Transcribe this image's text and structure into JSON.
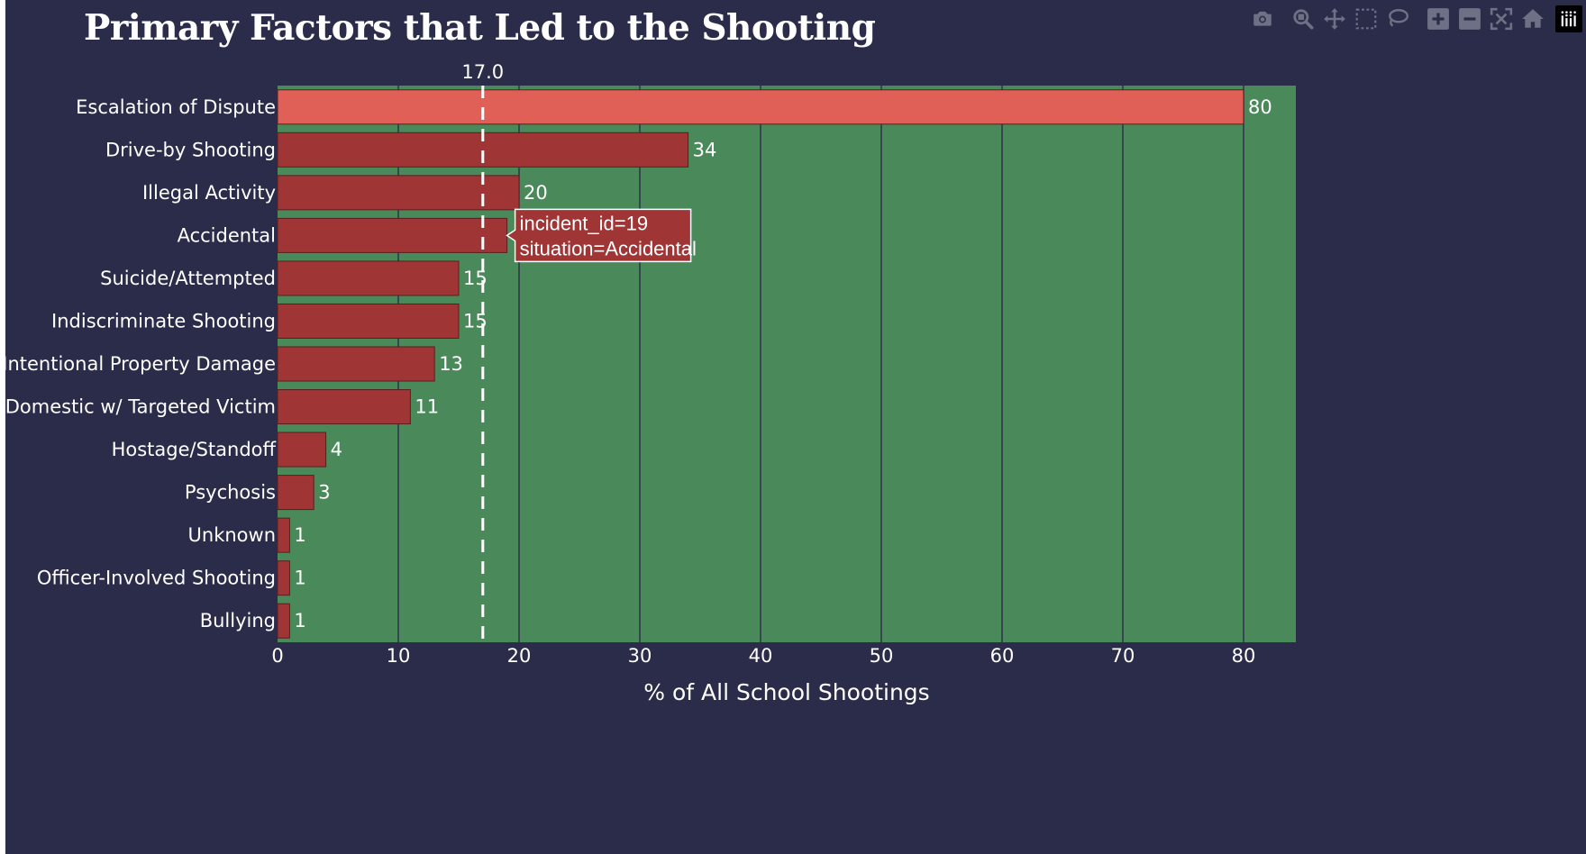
{
  "chart_data": {
    "type": "bar",
    "orientation": "horizontal",
    "title": "Primary Factors that Led to the Shooting",
    "xlabel": "% of All School Shootings",
    "ylabel": "",
    "xlim": [
      0,
      84
    ],
    "xticks": [
      0,
      10,
      20,
      30,
      40,
      50,
      60,
      70,
      80
    ],
    "grid": true,
    "categories": [
      "Escalation of Dispute",
      "Drive-by Shooting",
      "Illegal Activity",
      "Accidental",
      "Suicide/Attempted",
      "Indiscriminate Shooting",
      "Intentional Property Damage",
      "Domestic w/ Targeted Victim",
      "Hostage/Standoff",
      "Psychosis",
      "Unknown",
      "Officer-Involved Shooting",
      "Bullying"
    ],
    "values": [
      80,
      34,
      20,
      19,
      15,
      15,
      13,
      11,
      4,
      3,
      1,
      1,
      1
    ],
    "bar_text": [
      "80",
      "34",
      "20",
      "",
      "15",
      "15",
      "13",
      "11",
      "4",
      "3",
      "1",
      "1",
      "1"
    ],
    "highlighted_category": "Escalation of Dispute",
    "reference_line": {
      "value": 17.0,
      "label": "17.0",
      "style": "dashed"
    },
    "hover_tooltip": {
      "category": "Accidental",
      "lines": [
        "incident_id=19",
        "situation=Accidental"
      ]
    },
    "colors": {
      "background": "#2b2c4a",
      "plot_background": "#4a8a5a",
      "bar": "#a03535",
      "bar_highlight": "#e06058",
      "bar_border": "#5a1e1e",
      "grid": "#2b2c4a",
      "text": "#ffffff"
    }
  },
  "modebar": {
    "buttons": [
      {
        "name": "camera-icon",
        "title": "Download plot as a png"
      },
      {
        "name": "zoom-icon",
        "title": "Zoom"
      },
      {
        "name": "pan-icon",
        "title": "Pan"
      },
      {
        "name": "box-select-icon",
        "title": "Box Select"
      },
      {
        "name": "lasso-select-icon",
        "title": "Lasso Select"
      },
      {
        "name": "zoom-in-icon",
        "title": "Zoom in"
      },
      {
        "name": "zoom-out-icon",
        "title": "Zoom out"
      },
      {
        "name": "autoscale-icon",
        "title": "Autoscale"
      },
      {
        "name": "reset-axes-icon",
        "title": "Reset axes"
      },
      {
        "name": "plotly-logo-icon",
        "title": "Produced with Plotly"
      }
    ],
    "icon_color": "#6e7085"
  }
}
